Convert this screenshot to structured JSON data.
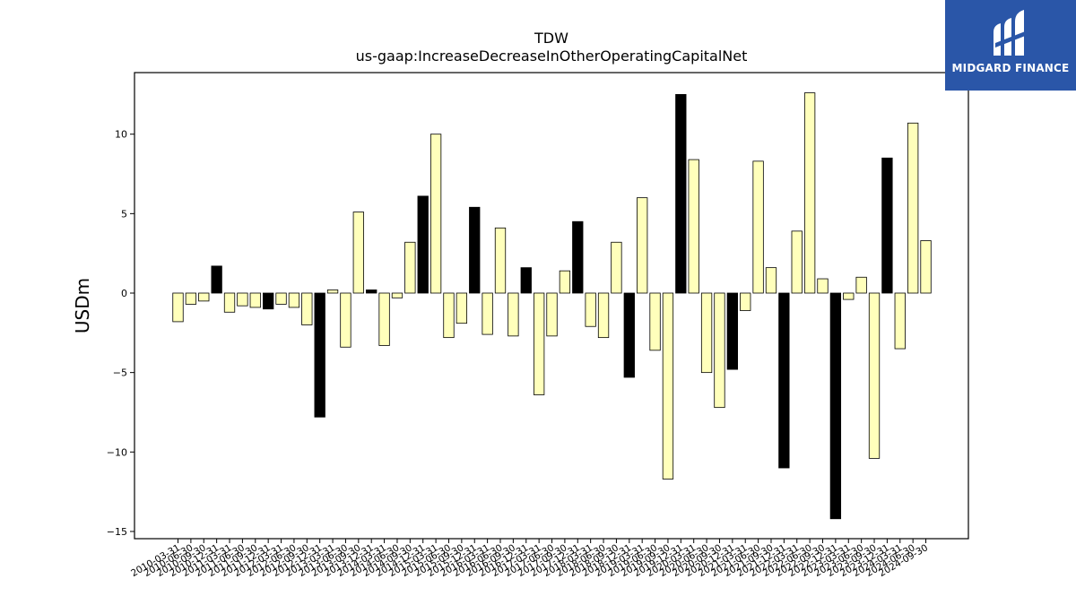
{
  "chart_data": {
    "type": "bar",
    "title": "TDW",
    "subtitle": "us-gaap:IncreaseDecreaseInOtherOperatingCapitalNet",
    "ylabel": "USDm",
    "xlabel": "",
    "ylim": [
      -15.5,
      14
    ],
    "yticks": [
      -15,
      -10,
      -5,
      0,
      5,
      10
    ],
    "ytick_labels": [
      "−15",
      "−10",
      "−5",
      "0",
      "5",
      "10"
    ],
    "colors": {
      "q4": "#000000",
      "quarter": "#ffffbb",
      "edge": "#000000"
    },
    "categories": [
      "2010-03-31",
      "2010-06-30",
      "2010-09-30",
      "2010-12-31",
      "2011-03-31",
      "2011-06-30",
      "2011-09-30",
      "2011-12-31",
      "2012-03-31",
      "2012-06-30",
      "2012-09-30",
      "2012-12-31",
      "2013-03-31",
      "2013-06-30",
      "2013-09-30",
      "2013-12-31",
      "2014-03-31",
      "2014-06-30",
      "2014-09-30",
      "2014-12-31",
      "2015-03-31",
      "2015-06-30",
      "2015-09-30",
      "2015-12-31",
      "2016-03-31",
      "2016-06-30",
      "2016-09-30",
      "2016-12-31",
      "2017-03-31",
      "2017-06-30",
      "2017-09-30",
      "2017-12-31",
      "2018-03-31",
      "2018-06-30",
      "2018-09-30",
      "2018-12-31",
      "2019-03-31",
      "2019-06-30",
      "2019-09-30",
      "2019-12-31",
      "2020-03-31",
      "2020-06-30",
      "2020-09-30",
      "2020-12-31",
      "2021-03-31",
      "2021-06-30",
      "2021-09-30",
      "2021-12-31",
      "2022-03-31",
      "2022-06-30",
      "2022-09-30",
      "2022-12-31",
      "2023-03-31",
      "2023-06-30",
      "2023-09-30",
      "2023-12-31",
      "2024-03-31",
      "2024-06-30",
      "2024-09-30"
    ],
    "values": [
      -1.8,
      -0.7,
      -0.5,
      1.7,
      -1.2,
      -0.8,
      -0.9,
      -1.0,
      -0.7,
      -0.9,
      -2.0,
      -7.8,
      0.2,
      -3.4,
      5.1,
      0.2,
      -3.3,
      -0.3,
      3.2,
      6.1,
      10.0,
      -2.8,
      -1.9,
      5.4,
      -2.6,
      4.1,
      -2.7,
      1.6,
      -6.4,
      -2.7,
      1.4,
      4.5,
      -2.1,
      -2.8,
      3.2,
      -5.3,
      6.0,
      -3.6,
      -11.7,
      12.5,
      8.4,
      -5.0,
      -7.2,
      -4.8,
      -1.1,
      8.3,
      1.6,
      -11.0,
      3.9,
      12.6,
      0.9,
      -14.2,
      -0.4,
      1.0,
      -10.4,
      8.5,
      -3.5,
      10.7,
      3.3
    ],
    "highlight": [
      false,
      false,
      false,
      true,
      false,
      false,
      false,
      true,
      false,
      false,
      false,
      true,
      false,
      false,
      false,
      true,
      false,
      false,
      false,
      true,
      false,
      false,
      false,
      true,
      false,
      false,
      false,
      true,
      false,
      false,
      false,
      true,
      false,
      false,
      false,
      true,
      false,
      false,
      false,
      true,
      false,
      false,
      false,
      true,
      false,
      false,
      false,
      true,
      false,
      false,
      false,
      true,
      false,
      false,
      false,
      true,
      false,
      false,
      false
    ],
    "grid": false,
    "legend": "none"
  },
  "logo": {
    "text": "MIDGARD FINANCE",
    "color": "#2a56a8"
  }
}
